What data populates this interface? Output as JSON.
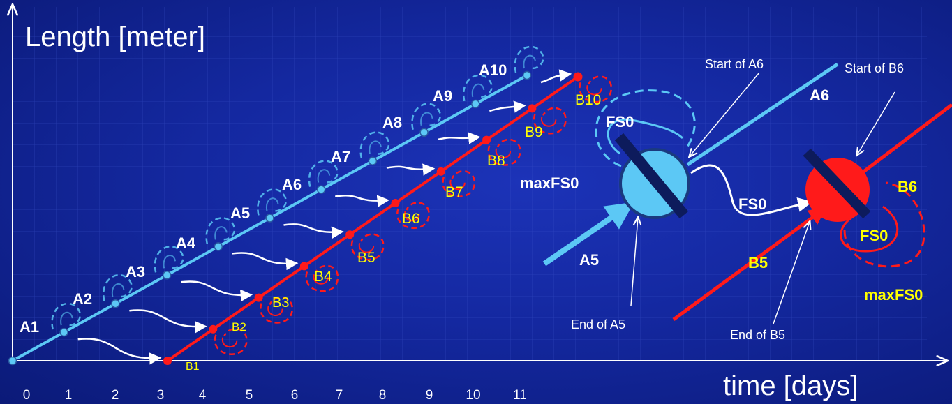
{
  "axes": {
    "y_label": "Length [meter]",
    "x_label": "time [days]",
    "x_ticks": [
      "0",
      "1",
      "2",
      "3",
      "4",
      "5",
      "6",
      "7",
      "8",
      "9",
      "10",
      "11"
    ]
  },
  "line_a": {
    "color": "#5cc8f5",
    "labels": [
      "A1",
      "A2",
      "A3",
      "A4",
      "A5",
      "A6",
      "A7",
      "A8",
      "A9",
      "A10"
    ]
  },
  "line_b": {
    "color": "#ff1a1a",
    "labels": [
      "B1",
      "B2",
      "B3",
      "B4",
      "B5",
      "B6",
      "B7",
      "B8",
      "B9",
      "B10"
    ]
  },
  "detail": {
    "fs0": "FS0",
    "max_fs0": "maxFS0",
    "a5": "A5",
    "a6": "A6",
    "b5": "B5",
    "b6": "B6",
    "start_a6": "Start of A6",
    "start_b6": "Start of B6",
    "end_a5": "End of A5",
    "end_b5": "End of B5"
  },
  "colors": {
    "background": "#1428a0",
    "label_yellow": "#ffff00",
    "text_white": "#ffffff"
  }
}
